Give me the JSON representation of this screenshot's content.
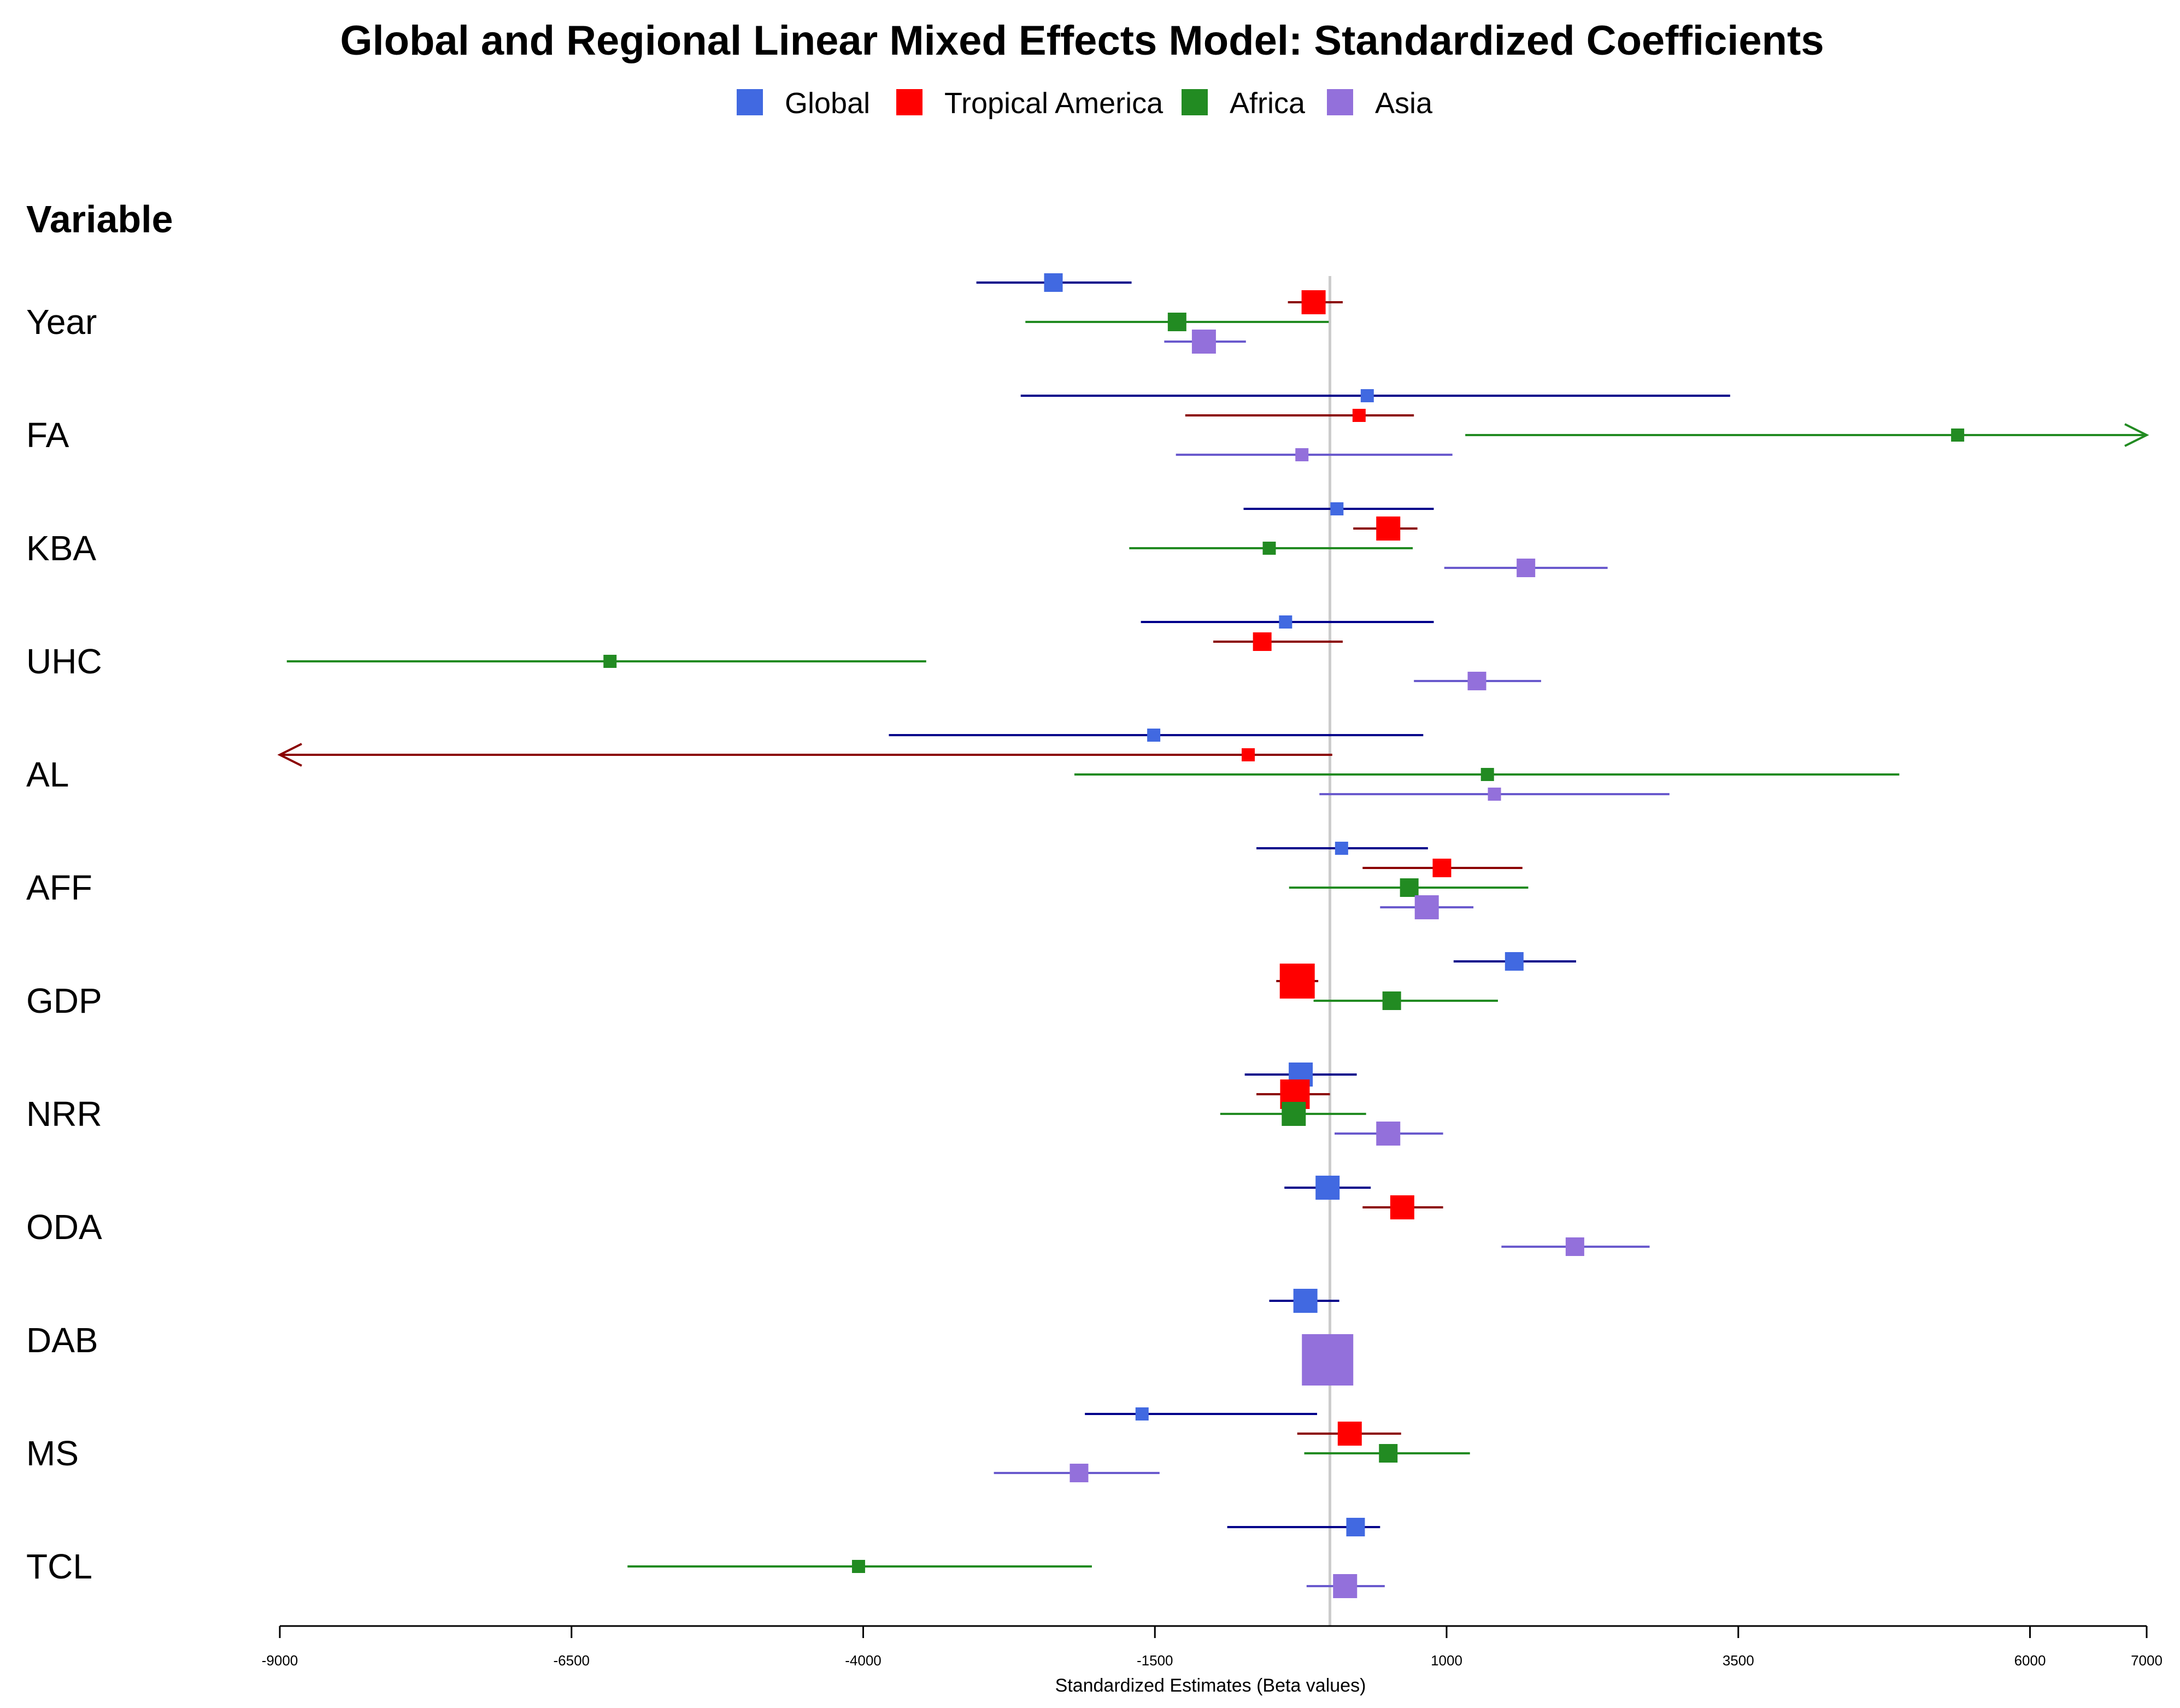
{
  "chart_data": {
    "type": "forest",
    "title": "Global and Regional Linear Mixed Effects Model: Standardized Coefficients",
    "xlabel": "Standardized Estimates (Beta values)",
    "ylabel_header": "Variable",
    "xlim": [
      -9000,
      7000
    ],
    "xticks": [
      -9000,
      -6500,
      -4000,
      -1500,
      1000,
      3500,
      6000,
      7000
    ],
    "xtick_labels": [
      "-9000",
      "-6500",
      "-4000",
      "-1500",
      "1000",
      "3500",
      "6000",
      "7000"
    ],
    "reference_line": 0,
    "legend": [
      {
        "name": "Global",
        "color": "#4169E1"
      },
      {
        "name": "Tropical America",
        "color": "#FF0000"
      },
      {
        "name": "Africa",
        "color": "#228B22"
      },
      {
        "name": "Asia",
        "color": "#9370DB"
      }
    ],
    "series_line_colors": {
      "Global": "#00008B",
      "Tropical America": "#8B0000",
      "Africa": "#228B22",
      "Asia": "#6A5ACD"
    },
    "variables": [
      "Year",
      "FA",
      "KBA",
      "UHC",
      "AL",
      "AFF",
      "GDP",
      "NRR",
      "ODA",
      "DAB",
      "MS",
      "TCL"
    ],
    "estimates": [
      {
        "variable": "Year",
        "series": "Global",
        "est": -2370,
        "lo": -3030,
        "hi": -1700,
        "weight": 2
      },
      {
        "variable": "Year",
        "series": "Tropical America",
        "est": -140,
        "lo": -360,
        "hi": 110,
        "weight": 3
      },
      {
        "variable": "Year",
        "series": "Africa",
        "est": -1310,
        "lo": -2610,
        "hi": -10,
        "weight": 2
      },
      {
        "variable": "Year",
        "series": "Asia",
        "est": -1080,
        "lo": -1420,
        "hi": -720,
        "weight": 3
      },
      {
        "variable": "FA",
        "series": "Global",
        "est": 320,
        "lo": -2650,
        "hi": 3430,
        "weight": 1
      },
      {
        "variable": "FA",
        "series": "Tropical America",
        "est": 250,
        "lo": -1240,
        "hi": 720,
        "weight": 1
      },
      {
        "variable": "FA",
        "series": "Africa",
        "est": 5380,
        "lo": 1160,
        "hi": 7000,
        "weight": 1,
        "arrow_right": true
      },
      {
        "variable": "FA",
        "series": "Asia",
        "est": -240,
        "lo": -1320,
        "hi": 1050,
        "weight": 1
      },
      {
        "variable": "KBA",
        "series": "Global",
        "est": 60,
        "lo": -740,
        "hi": 890,
        "weight": 1
      },
      {
        "variable": "KBA",
        "series": "Tropical America",
        "est": 500,
        "lo": 200,
        "hi": 750,
        "weight": 3
      },
      {
        "variable": "KBA",
        "series": "Africa",
        "est": -520,
        "lo": -1720,
        "hi": 710,
        "weight": 1
      },
      {
        "variable": "KBA",
        "series": "Asia",
        "est": 1680,
        "lo": 980,
        "hi": 2380,
        "weight": 2
      },
      {
        "variable": "UHC",
        "series": "Global",
        "est": -380,
        "lo": -1620,
        "hi": 890,
        "weight": 1
      },
      {
        "variable": "UHC",
        "series": "Tropical America",
        "est": -580,
        "lo": -1000,
        "hi": 110,
        "weight": 2
      },
      {
        "variable": "UHC",
        "series": "Africa",
        "est": -6170,
        "lo": -8940,
        "hi": -3460,
        "weight": 1
      },
      {
        "variable": "UHC",
        "series": "Asia",
        "est": 1260,
        "lo": 720,
        "hi": 1810,
        "weight": 2
      },
      {
        "variable": "AL",
        "series": "Global",
        "est": -1510,
        "lo": -3780,
        "hi": 800,
        "weight": 1
      },
      {
        "variable": "AL",
        "series": "Tropical America",
        "est": -700,
        "lo": -9000,
        "hi": 20,
        "weight": 1,
        "arrow_left": true
      },
      {
        "variable": "AL",
        "series": "Africa",
        "est": 1350,
        "lo": -2190,
        "hi": 4880,
        "weight": 1
      },
      {
        "variable": "AL",
        "series": "Asia",
        "est": 1410,
        "lo": -90,
        "hi": 2910,
        "weight": 1
      },
      {
        "variable": "AFF",
        "series": "Global",
        "est": 100,
        "lo": -630,
        "hi": 840,
        "weight": 1
      },
      {
        "variable": "AFF",
        "series": "Tropical America",
        "est": 960,
        "lo": 280,
        "hi": 1650,
        "weight": 2
      },
      {
        "variable": "AFF",
        "series": "Africa",
        "est": 680,
        "lo": -350,
        "hi": 1700,
        "weight": 2
      },
      {
        "variable": "AFF",
        "series": "Asia",
        "est": 830,
        "lo": 430,
        "hi": 1230,
        "weight": 3
      },
      {
        "variable": "GDP",
        "series": "Global",
        "est": 1580,
        "lo": 1060,
        "hi": 2110,
        "weight": 2
      },
      {
        "variable": "GDP",
        "series": "Tropical America",
        "est": -280,
        "lo": -460,
        "hi": -100,
        "weight": 5
      },
      {
        "variable": "GDP",
        "series": "Africa",
        "est": 530,
        "lo": -140,
        "hi": 1440,
        "weight": 2
      },
      {
        "variable": "NRR",
        "series": "Global",
        "est": -250,
        "lo": -730,
        "hi": 230,
        "weight": 3
      },
      {
        "variable": "NRR",
        "series": "Tropical America",
        "est": -300,
        "lo": -630,
        "hi": 0,
        "weight": 4
      },
      {
        "variable": "NRR",
        "series": "Africa",
        "est": -310,
        "lo": -940,
        "hi": 310,
        "weight": 3
      },
      {
        "variable": "NRR",
        "series": "Asia",
        "est": 500,
        "lo": 40,
        "hi": 970,
        "weight": 3
      },
      {
        "variable": "ODA",
        "series": "Global",
        "est": -20,
        "lo": -390,
        "hi": 350,
        "weight": 3
      },
      {
        "variable": "ODA",
        "series": "Tropical America",
        "est": 620,
        "lo": 280,
        "hi": 970,
        "weight": 3
      },
      {
        "variable": "ODA",
        "series": "Asia",
        "est": 2100,
        "lo": 1470,
        "hi": 2740,
        "weight": 2
      },
      {
        "variable": "DAB",
        "series": "Global",
        "est": -210,
        "lo": -520,
        "hi": 80,
        "weight": 3
      },
      {
        "variable": "DAB",
        "series": "Asia",
        "est": -20,
        "lo": -220,
        "hi": 180,
        "weight": 8
      },
      {
        "variable": "MS",
        "series": "Global",
        "est": -1610,
        "lo": -2100,
        "hi": -110,
        "weight": 1
      },
      {
        "variable": "MS",
        "series": "Tropical America",
        "est": 170,
        "lo": -280,
        "hi": 610,
        "weight": 3
      },
      {
        "variable": "MS",
        "series": "Africa",
        "est": 500,
        "lo": -220,
        "hi": 1200,
        "weight": 2
      },
      {
        "variable": "MS",
        "series": "Asia",
        "est": -2150,
        "lo": -2880,
        "hi": -1460,
        "weight": 2
      },
      {
        "variable": "TCL",
        "series": "Global",
        "est": 220,
        "lo": -880,
        "hi": 430,
        "weight": 2
      },
      {
        "variable": "TCL",
        "series": "Africa",
        "est": -4040,
        "lo": -6020,
        "hi": -2040,
        "weight": 1
      },
      {
        "variable": "TCL",
        "series": "Asia",
        "est": 130,
        "lo": -200,
        "hi": 470,
        "weight": 3
      }
    ]
  }
}
